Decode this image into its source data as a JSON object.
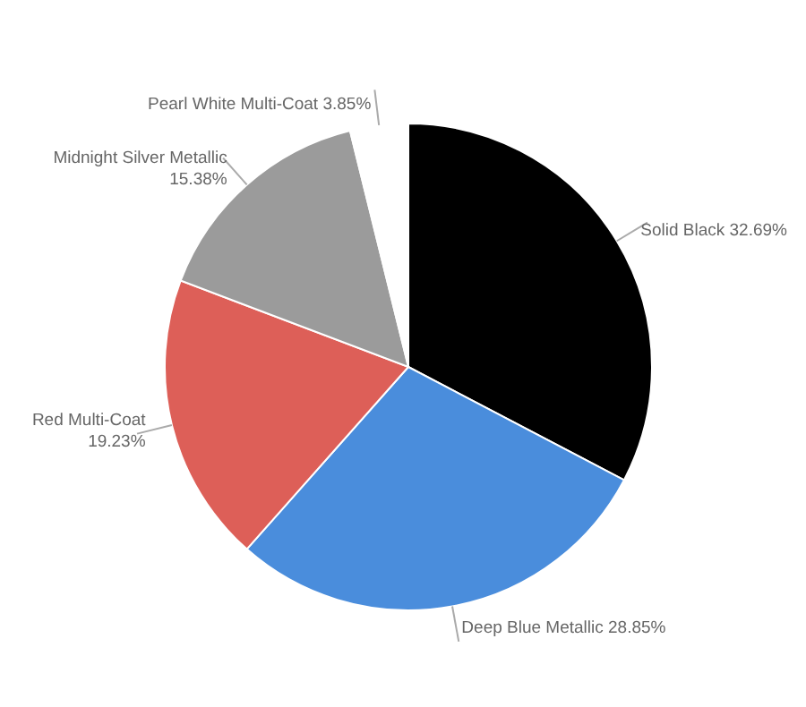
{
  "chart_data": {
    "type": "pie",
    "categories": [
      "Solid Black",
      "Deep Blue Metallic",
      "Red Multi-Coat",
      "Midnight Silver Metallic",
      "Pearl White Multi-Coat"
    ],
    "values": [
      32.69,
      28.85,
      19.23,
      15.38,
      3.85
    ],
    "value_labels": [
      "32.69%",
      "28.85%",
      "19.23%",
      "15.38%",
      "3.85%"
    ],
    "colors": [
      "#000000",
      "#4a8ddc",
      "#dd5f58",
      "#9b9b9b",
      "#ffffff"
    ]
  }
}
